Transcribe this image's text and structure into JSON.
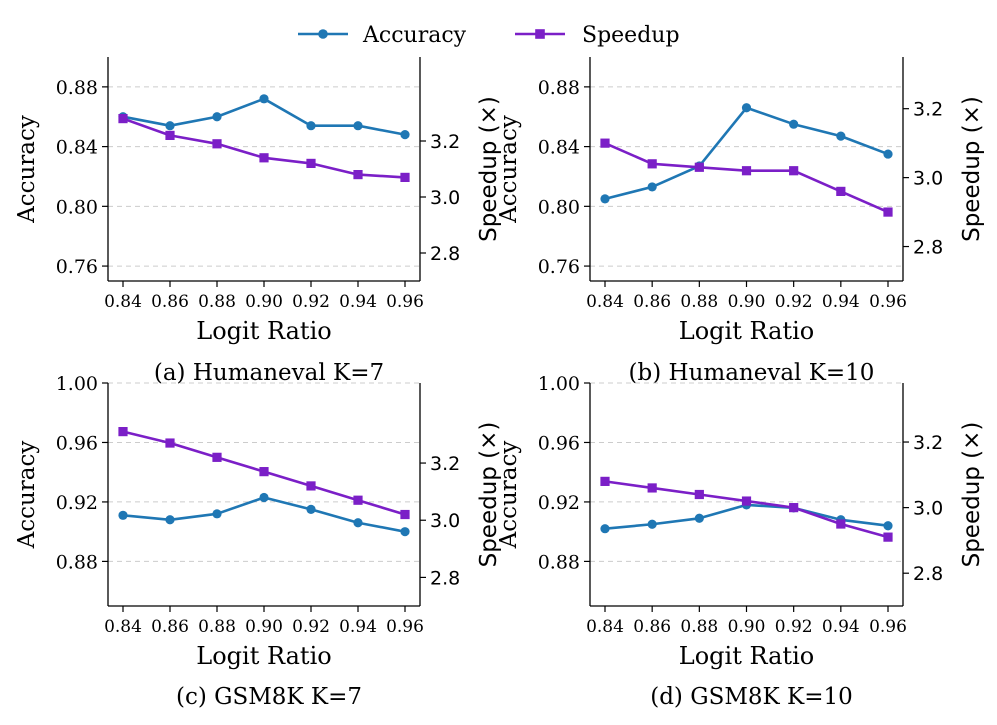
{
  "legend": {
    "placement": "top-center",
    "entries": [
      {
        "label": "Accuracy",
        "color": "#1f77b4",
        "marker": "circle"
      },
      {
        "label": "Speedup",
        "color": "#7b1fc7",
        "marker": "square"
      }
    ]
  },
  "chart_data": [
    {
      "type": "line",
      "caption": "(a) Humaneval K=7",
      "xlabel": "Logit Ratio",
      "ylabel": "Accuracy",
      "y2label": "Speedup (×)",
      "x": [
        0.84,
        0.86,
        0.88,
        0.9,
        0.92,
        0.94,
        0.96
      ],
      "xticks": [
        "0.84",
        "0.86",
        "0.88",
        "0.90",
        "0.92",
        "0.94",
        "0.96"
      ],
      "ylim": [
        0.75,
        0.9
      ],
      "yticks": [
        "0.76",
        "0.80",
        "0.84",
        "0.88"
      ],
      "y2lim": [
        2.7,
        3.5
      ],
      "y2ticks": [
        "2.8",
        "3.0",
        "3.2"
      ],
      "grid": "horizontal-dashed",
      "series": [
        {
          "name": "Accuracy",
          "axis": "left",
          "color": "#1f77b4",
          "marker": "circle",
          "values": [
            0.86,
            0.854,
            0.86,
            0.872,
            0.854,
            0.854,
            0.848
          ]
        },
        {
          "name": "Speedup",
          "axis": "right",
          "color": "#7b1fc7",
          "marker": "square",
          "values": [
            3.28,
            3.22,
            3.19,
            3.14,
            3.12,
            3.08,
            3.07
          ]
        }
      ]
    },
    {
      "type": "line",
      "caption": "(b) Humaneval K=10",
      "xlabel": "Logit Ratio",
      "ylabel": "Accuracy",
      "y2label": "Speedup (×)",
      "x": [
        0.84,
        0.86,
        0.88,
        0.9,
        0.92,
        0.94,
        0.96
      ],
      "xticks": [
        "0.84",
        "0.86",
        "0.88",
        "0.90",
        "0.92",
        "0.94",
        "0.96"
      ],
      "ylim": [
        0.75,
        0.9
      ],
      "yticks": [
        "0.76",
        "0.80",
        "0.84",
        "0.88"
      ],
      "y2lim": [
        2.7,
        3.35
      ],
      "y2ticks": [
        "2.8",
        "3.0",
        "3.2"
      ],
      "grid": "horizontal-dashed",
      "series": [
        {
          "name": "Accuracy",
          "axis": "left",
          "color": "#1f77b4",
          "marker": "circle",
          "values": [
            0.805,
            0.813,
            0.827,
            0.866,
            0.855,
            0.847,
            0.835
          ]
        },
        {
          "name": "Speedup",
          "axis": "right",
          "color": "#7b1fc7",
          "marker": "square",
          "values": [
            3.1,
            3.04,
            3.03,
            3.02,
            3.02,
            2.96,
            2.9
          ]
        }
      ]
    },
    {
      "type": "line",
      "caption": "(c) GSM8K K=7",
      "xlabel": "Logit Ratio",
      "ylabel": "Accuracy",
      "y2label": "Speedup (×)",
      "x": [
        0.84,
        0.86,
        0.88,
        0.9,
        0.92,
        0.94,
        0.96
      ],
      "xticks": [
        "0.84",
        "0.86",
        "0.88",
        "0.90",
        "0.92",
        "0.94",
        "0.96"
      ],
      "ylim": [
        0.85,
        1.0
      ],
      "yticks": [
        "0.88",
        "0.92",
        "0.96",
        "1.00"
      ],
      "y2lim": [
        2.7,
        3.48
      ],
      "y2ticks": [
        "2.8",
        "3.0",
        "3.2"
      ],
      "grid": "horizontal-dashed",
      "series": [
        {
          "name": "Accuracy",
          "axis": "left",
          "color": "#1f77b4",
          "marker": "circle",
          "values": [
            0.911,
            0.908,
            0.912,
            0.923,
            0.915,
            0.906,
            0.9
          ]
        },
        {
          "name": "Speedup",
          "axis": "right",
          "color": "#7b1fc7",
          "marker": "square",
          "values": [
            3.31,
            3.27,
            3.22,
            3.17,
            3.12,
            3.07,
            3.02
          ]
        }
      ]
    },
    {
      "type": "line",
      "caption": "(d) GSM8K K=10",
      "xlabel": "Logit Ratio",
      "ylabel": "Accuracy",
      "y2label": "Speedup (×)",
      "x": [
        0.84,
        0.86,
        0.88,
        0.9,
        0.92,
        0.94,
        0.96
      ],
      "xticks": [
        "0.84",
        "0.86",
        "0.88",
        "0.90",
        "0.92",
        "0.94",
        "0.96"
      ],
      "ylim": [
        0.85,
        1.0
      ],
      "yticks": [
        "0.88",
        "0.92",
        "0.96",
        "1.00"
      ],
      "y2lim": [
        2.7,
        3.38
      ],
      "y2ticks": [
        "2.8",
        "3.0",
        "3.2"
      ],
      "grid": "horizontal-dashed",
      "series": [
        {
          "name": "Accuracy",
          "axis": "left",
          "color": "#1f77b4",
          "marker": "circle",
          "values": [
            0.902,
            0.905,
            0.909,
            0.918,
            0.916,
            0.908,
            0.904
          ]
        },
        {
          "name": "Speedup",
          "axis": "right",
          "color": "#7b1fc7",
          "marker": "square",
          "values": [
            3.08,
            3.06,
            3.04,
            3.02,
            3.0,
            2.95,
            2.91
          ]
        }
      ]
    }
  ]
}
